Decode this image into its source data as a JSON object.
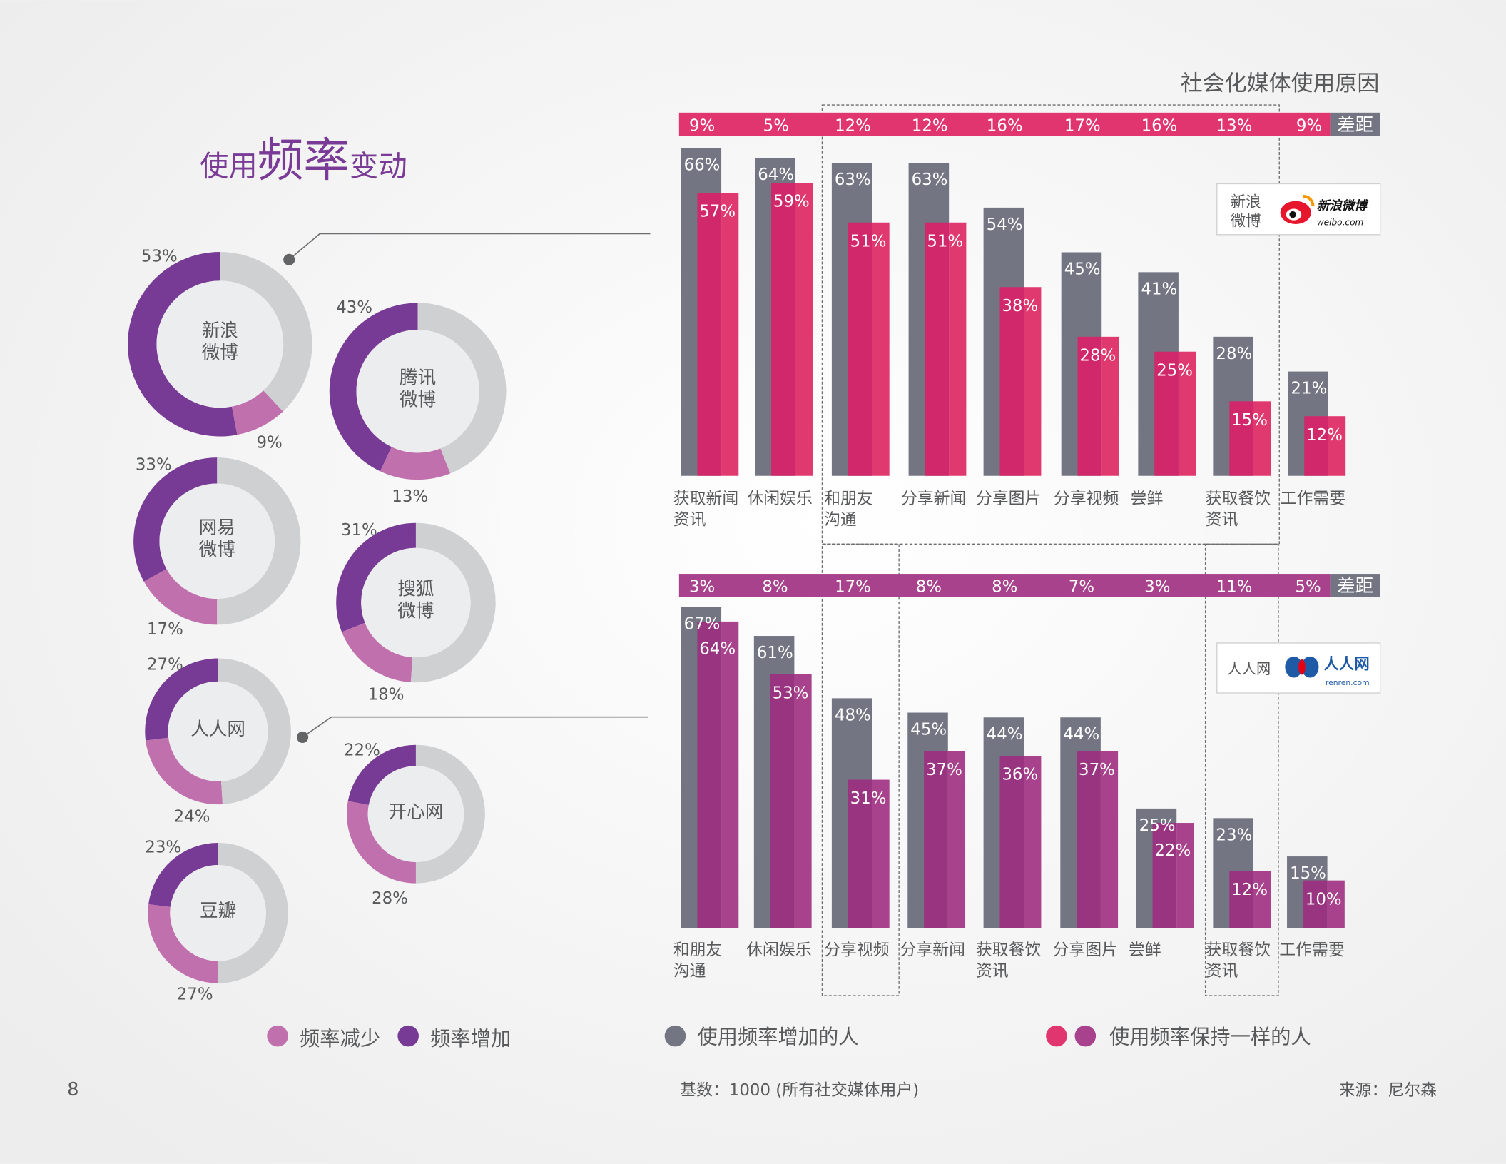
{
  "page_number": "8",
  "left": {
    "title_pre": "使用",
    "title_big": "频率",
    "title_post": "变动",
    "legend": [
      {
        "label": "频率减少",
        "color": "#bf70ad"
      },
      {
        "label": "频率增加",
        "color": "#773b95"
      }
    ],
    "donuts": [
      {
        "name": "新浪微博",
        "lines": [
          "新浪",
          "微博"
        ],
        "increase": 53,
        "decrease": 9,
        "increase_label": "53%",
        "decrease_label": "9%"
      },
      {
        "name": "腾讯微博",
        "lines": [
          "腾讯",
          "微博"
        ],
        "increase": 43,
        "decrease": 13,
        "increase_label": "43%",
        "decrease_label": "13%"
      },
      {
        "name": "网易微博",
        "lines": [
          "网易",
          "微博"
        ],
        "increase": 33,
        "decrease": 17,
        "increase_label": "33%",
        "decrease_label": "17%"
      },
      {
        "name": "搜狐微博",
        "lines": [
          "搜狐",
          "微博"
        ],
        "increase": 31,
        "decrease": 18,
        "increase_label": "31%",
        "decrease_label": "18%"
      },
      {
        "name": "人人网",
        "lines": [
          "人人网"
        ],
        "increase": 27,
        "decrease": 24,
        "increase_label": "27%",
        "decrease_label": "24%"
      },
      {
        "name": "开心网",
        "lines": [
          "开心网"
        ],
        "increase": 22,
        "decrease": 28,
        "increase_label": "22%",
        "decrease_label": "28%"
      },
      {
        "name": "豆瓣",
        "lines": [
          "豆瓣"
        ],
        "increase": 23,
        "decrease": 27,
        "increase_label": "23%",
        "decrease_label": "27%"
      }
    ],
    "colors": {
      "increase": "#773b95",
      "decrease": "#bf70ad",
      "rest": "#cfd0d2",
      "center": "#ecedef"
    }
  },
  "right": {
    "title": "社会化媒体使用原因",
    "gap_label": "差距",
    "legend": {
      "increased": {
        "label": "使用频率增加的人",
        "color": "#737583"
      },
      "same": {
        "label": "使用频率保持一样的人",
        "colors": [
          "#e0356f",
          "#a8428c"
        ]
      }
    },
    "footer_base": "基数：1000 (所有社交媒体用户)",
    "footer_source": "来源：尼尔森"
  },
  "logos": {
    "sina": {
      "caption": [
        "新浪",
        "微博"
      ],
      "logo_text": "新浪微博",
      "logo_sub": "weibo.com"
    },
    "renren": {
      "caption": "人人网",
      "logo_text": "人人网",
      "logo_sub": "renren.com"
    }
  },
  "chart_data": [
    {
      "type": "bar",
      "title": "新浪微博",
      "categories": [
        [
          "获取新闻",
          "资讯"
        ],
        [
          "休闲娱乐"
        ],
        [
          "和朋友",
          "沟通"
        ],
        [
          "分享新闻"
        ],
        [
          "分享图片"
        ],
        [
          "分享视频"
        ],
        [
          "尝鲜"
        ],
        [
          "获取餐饮",
          "资讯"
        ],
        [
          "工作需要"
        ]
      ],
      "series": [
        {
          "name": "使用频率增加的人",
          "values": [
            66,
            64,
            63,
            63,
            54,
            45,
            41,
            28,
            21
          ],
          "color": "#737583"
        },
        {
          "name": "使用频率保持一样的人",
          "values": [
            57,
            59,
            51,
            51,
            38,
            28,
            25,
            15,
            12
          ],
          "color": "#e0356f"
        }
      ],
      "gap": [
        9,
        5,
        12,
        12,
        16,
        17,
        16,
        13,
        9
      ],
      "unit": "%",
      "band_color": "#e0356f",
      "highlighted": [
        [
          "和朋友",
          "沟通"
        ],
        [
          "分享新闻"
        ],
        [
          "分享图片"
        ],
        [
          "分享视频"
        ],
        [
          "尝鲜"
        ],
        [
          "获取餐饮",
          "资讯"
        ]
      ]
    },
    {
      "type": "bar",
      "title": "人人网",
      "categories": [
        [
          "和朋友",
          "沟通"
        ],
        [
          "休闲娱乐"
        ],
        [
          "分享视频"
        ],
        [
          "分享新闻"
        ],
        [
          "获取餐饮",
          "资讯"
        ],
        [
          "分享图片"
        ],
        [
          "尝鲜"
        ],
        [
          "获取餐饮",
          "资讯"
        ],
        [
          "工作需要"
        ]
      ],
      "series": [
        {
          "name": "使用频率增加的人",
          "values": [
            67,
            61,
            48,
            45,
            44,
            44,
            25,
            23,
            15
          ],
          "color": "#737583"
        },
        {
          "name": "使用频率保持一样的人",
          "values": [
            64,
            53,
            31,
            37,
            36,
            37,
            22,
            12,
            10
          ],
          "color": "#a8428c"
        }
      ],
      "gap": [
        3,
        8,
        17,
        8,
        8,
        7,
        3,
        11,
        5
      ],
      "unit": "%",
      "band_color": "#a8428c",
      "highlighted": [
        [
          "分享视频"
        ],
        [
          "获取餐饮",
          "资讯"
        ]
      ]
    }
  ]
}
